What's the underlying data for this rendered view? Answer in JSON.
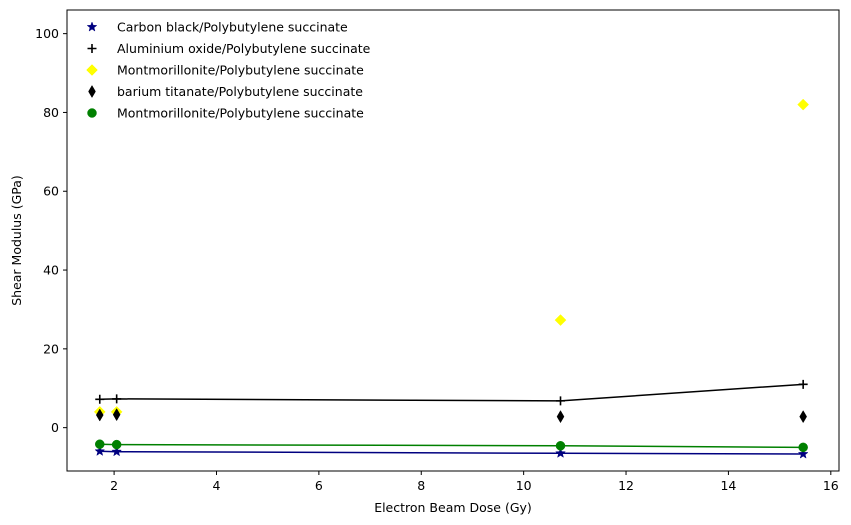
{
  "chart_data": {
    "type": "scatter",
    "xlabel": "Electron Beam Dose (Gy)",
    "ylabel": "Shear Modulus (GPa)",
    "xlim": [
      1.08,
      16.16
    ],
    "ylim": [
      -11,
      106
    ],
    "xticks": [
      2,
      4,
      6,
      8,
      10,
      12,
      14,
      16
    ],
    "yticks": [
      0,
      20,
      40,
      60,
      80,
      100
    ],
    "grid": false,
    "legend_position": "top-left",
    "series": [
      {
        "name": "Carbon black/Polybutylene succinate",
        "marker": "star",
        "color": "#000080",
        "line": true,
        "x": [
          1.72,
          2.05,
          10.72,
          15.46
        ],
        "y": [
          -6.0,
          -6.1,
          -6.5,
          -6.7
        ]
      },
      {
        "name": "Aluminium oxide/Polybutylene succinate",
        "marker": "plus",
        "color": "#000000",
        "line": true,
        "x": [
          1.72,
          2.05,
          10.72,
          15.46
        ],
        "y": [
          7.2,
          7.3,
          6.8,
          11.0
        ]
      },
      {
        "name": "Montmorillonite/Polybutylene succinate",
        "marker": "diamond",
        "color": "#ffff00",
        "line": false,
        "x": [
          1.72,
          2.05,
          10.72,
          15.46
        ],
        "y": [
          4.0,
          4.0,
          27.3,
          82.0
        ]
      },
      {
        "name": "barium titanate/Polybutylene succinate",
        "marker": "thin_diamond",
        "color": "#000000",
        "line": false,
        "x": [
          1.72,
          2.05,
          10.72,
          15.46
        ],
        "y": [
          3.2,
          3.3,
          2.8,
          2.8
        ]
      },
      {
        "name": "Montmorillonite/Polybutylene succinate",
        "marker": "circle",
        "color": "#008000",
        "line": true,
        "x": [
          1.72,
          2.05,
          10.72,
          15.46
        ],
        "y": [
          -4.2,
          -4.3,
          -4.6,
          -5.0
        ]
      }
    ]
  }
}
